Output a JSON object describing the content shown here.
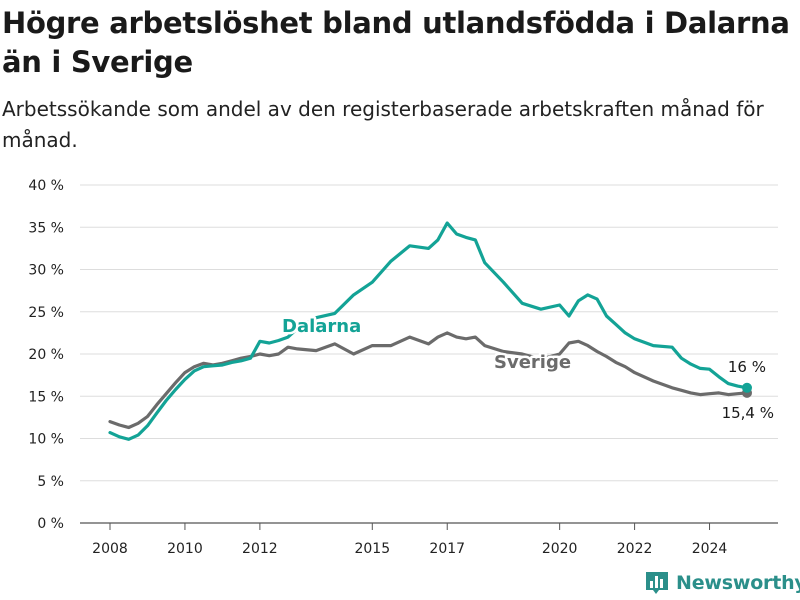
{
  "title": "Högre arbetslöshet bland utlandsfödda i Dalarna än i Sverige",
  "subtitle": "Arbetssökande som andel av den registerbaserade arbetskraften månad för månad.",
  "brand": "Newsworthy",
  "colors": {
    "dalarna": "#13a396",
    "sverige": "#6b6b6b",
    "grid": "#dddddd",
    "brand": "#2b8f8a"
  },
  "chart_data": {
    "type": "line",
    "title": "Högre arbetslöshet bland utlandsfödda i Dalarna än i Sverige",
    "subtitle": "Arbetssökande som andel av den registerbaserade arbetskraften månad för månad.",
    "xlabel": "",
    "ylabel": "",
    "xlim": [
      2008,
      2025
    ],
    "ylim": [
      0,
      40
    ],
    "yticks": [
      0,
      5,
      10,
      15,
      20,
      25,
      30,
      35,
      40
    ],
    "ytick_labels": [
      "0 %",
      "5 %",
      "10 %",
      "15 %",
      "20 %",
      "25 %",
      "30 %",
      "35 %",
      "40 %"
    ],
    "xticks": [
      2008,
      2010,
      2012,
      2015,
      2017,
      2020,
      2022,
      2024
    ],
    "xtick_labels": [
      "2008",
      "2010",
      "2012",
      "2015",
      "2017",
      "2020",
      "2022",
      "2024"
    ],
    "grid": "horizontal",
    "series": [
      {
        "name": "Dalarna",
        "end_label": "16 %",
        "x": [
          2008.0,
          2008.25,
          2008.5,
          2008.75,
          2009.0,
          2009.25,
          2009.5,
          2009.75,
          2010.0,
          2010.25,
          2010.5,
          2010.75,
          2011.0,
          2011.25,
          2011.5,
          2011.75,
          2012.0,
          2012.25,
          2012.5,
          2012.75,
          2013.0,
          2013.5,
          2014.0,
          2014.5,
          2015.0,
          2015.5,
          2016.0,
          2016.5,
          2016.75,
          2017.0,
          2017.25,
          2017.5,
          2017.75,
          2018.0,
          2018.5,
          2019.0,
          2019.5,
          2020.0,
          2020.25,
          2020.5,
          2020.75,
          2021.0,
          2021.25,
          2021.5,
          2021.75,
          2022.0,
          2022.5,
          2023.0,
          2023.25,
          2023.5,
          2023.75,
          2024.0,
          2024.25,
          2024.5,
          2024.75,
          2025.0
        ],
        "y": [
          10.7,
          10.2,
          9.9,
          10.4,
          11.5,
          13.0,
          14.5,
          15.8,
          17.0,
          18.0,
          18.5,
          18.6,
          18.7,
          19.0,
          19.2,
          19.5,
          21.5,
          21.3,
          21.6,
          22.0,
          23.0,
          24.3,
          24.8,
          27.0,
          28.5,
          31.0,
          32.8,
          32.5,
          33.5,
          35.5,
          34.2,
          33.8,
          33.5,
          30.8,
          28.5,
          26.0,
          25.3,
          25.8,
          24.5,
          26.3,
          27.0,
          26.5,
          24.5,
          23.5,
          22.5,
          21.8,
          21.0,
          20.8,
          19.5,
          18.8,
          18.3,
          18.2,
          17.3,
          16.5,
          16.2,
          16.0
        ]
      },
      {
        "name": "Sverige",
        "end_label": "15,4 %",
        "x": [
          2008.0,
          2008.25,
          2008.5,
          2008.75,
          2009.0,
          2009.25,
          2009.5,
          2009.75,
          2010.0,
          2010.25,
          2010.5,
          2010.75,
          2011.0,
          2011.25,
          2011.5,
          2011.75,
          2012.0,
          2012.25,
          2012.5,
          2012.75,
          2013.0,
          2013.5,
          2014.0,
          2014.5,
          2015.0,
          2015.5,
          2016.0,
          2016.5,
          2016.75,
          2017.0,
          2017.25,
          2017.5,
          2017.75,
          2018.0,
          2018.5,
          2019.0,
          2019.5,
          2020.0,
          2020.25,
          2020.5,
          2020.75,
          2021.0,
          2021.25,
          2021.5,
          2021.75,
          2022.0,
          2022.5,
          2023.0,
          2023.25,
          2023.5,
          2023.75,
          2024.0,
          2024.25,
          2024.5,
          2024.75,
          2025.0
        ],
        "y": [
          12.0,
          11.6,
          11.3,
          11.8,
          12.6,
          14.0,
          15.3,
          16.6,
          17.8,
          18.5,
          18.9,
          18.7,
          18.9,
          19.2,
          19.5,
          19.7,
          20.0,
          19.8,
          20.0,
          20.8,
          20.6,
          20.4,
          21.2,
          20.0,
          21.0,
          21.0,
          22.0,
          21.2,
          22.0,
          22.5,
          22.0,
          21.8,
          22.0,
          21.0,
          20.3,
          20.0,
          19.4,
          20.0,
          21.3,
          21.5,
          21.0,
          20.3,
          19.7,
          19.0,
          18.5,
          17.8,
          16.8,
          16.0,
          15.7,
          15.4,
          15.2,
          15.3,
          15.4,
          15.2,
          15.3,
          15.4
        ]
      }
    ]
  }
}
